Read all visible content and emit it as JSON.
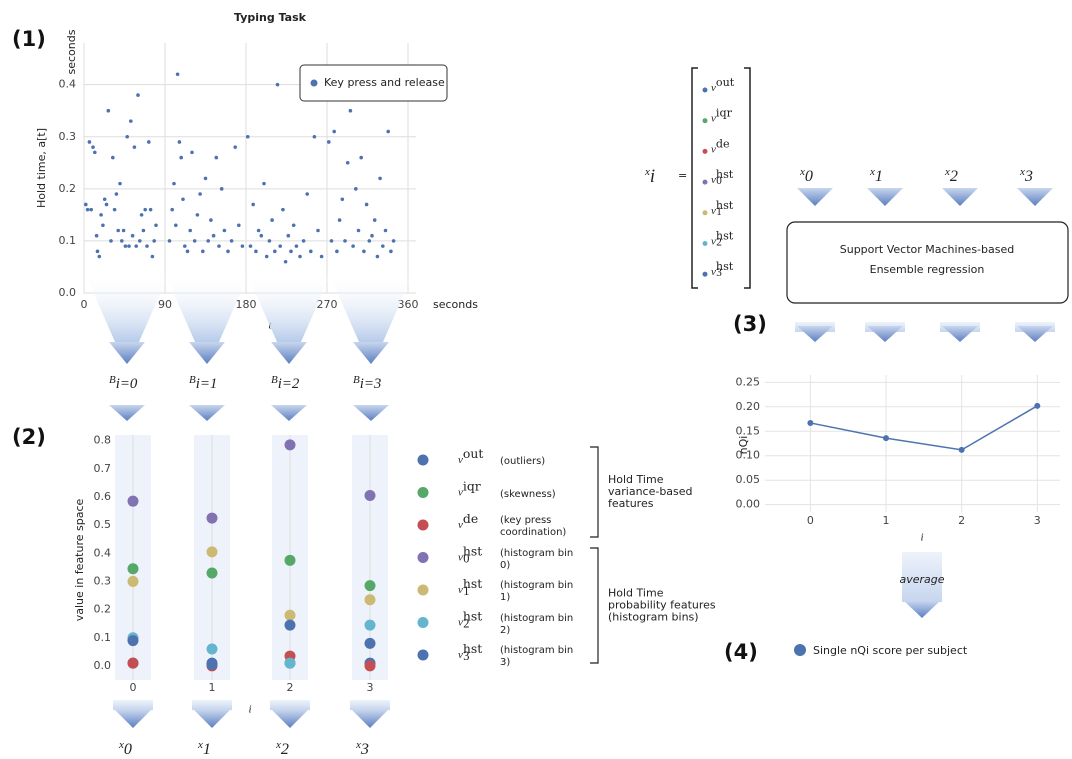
{
  "panels": [
    "(1)",
    "(2)",
    "(3)",
    "(4)"
  ],
  "blocks": [
    {
      "symbol": "B",
      "sub": "i=0"
    },
    {
      "symbol": "B",
      "sub": "i=1"
    },
    {
      "symbol": "B",
      "sub": "i=2"
    },
    {
      "symbol": "B",
      "sub": "i=3"
    }
  ],
  "features": [
    {
      "symbol": "x",
      "sub": "0"
    },
    {
      "symbol": "x",
      "sub": "1"
    },
    {
      "symbol": "x",
      "sub": "2"
    },
    {
      "symbol": "x",
      "sub": "3"
    }
  ],
  "features_top": [
    {
      "symbol": "x",
      "sub": "0"
    },
    {
      "symbol": "x",
      "sub": "1"
    },
    {
      "symbol": "x",
      "sub": "2"
    },
    {
      "symbol": "x",
      "sub": "3"
    }
  ],
  "vector": {
    "symbol": "x",
    "sub": "i",
    "eq": "=",
    "items": [
      {
        "sup": "out"
      },
      {
        "sup": "iqr"
      },
      {
        "sup": "de"
      },
      {
        "sup": "hst",
        "sub": "0"
      },
      {
        "sup": "hst",
        "sub": "1"
      },
      {
        "sup": "hst",
        "sub": "2"
      },
      {
        "sup": "hst",
        "sub": "3"
      }
    ],
    "symbol_item": "v"
  },
  "model_box": [
    "Support Vector Machines-based",
    "Ensemble regression"
  ],
  "average": "average",
  "result": "Single nQi score per subject",
  "brackets": [
    [
      "Hold Time",
      "variance-based",
      " features"
    ],
    [
      "Hold Time",
      "probability features",
      "(histogram bins)"
    ]
  ],
  "chart_data": [
    {
      "type": "scatter",
      "title": "Typing Task",
      "y_label": "Hold time, a[t]",
      "y_unit": "seconds",
      "x_label": "t",
      "x_unit": "seconds",
      "xlim": [
        0,
        360
      ],
      "xticks": [
        0,
        90,
        180,
        270,
        360
      ],
      "ylim": [
        0,
        0.48
      ],
      "yticks": [
        {
          "value": 0,
          "label": "0.0"
        },
        0.1,
        0.2,
        0.3,
        0.4
      ],
      "grid": true,
      "legend": "upper right",
      "series": [
        {
          "name": "Key press and release",
          "color": "#4c72b0",
          "x": [
            2,
            4,
            6,
            8,
            10,
            12,
            14,
            15,
            17,
            19,
            21,
            23,
            25,
            27,
            30,
            32,
            34,
            36,
            38,
            40,
            42,
            44,
            46,
            48,
            50,
            52,
            54,
            56,
            58,
            60,
            62,
            64,
            66,
            68,
            70,
            72,
            74,
            76,
            78,
            80,
            95,
            98,
            100,
            102,
            104,
            106,
            108,
            110,
            112,
            115,
            118,
            120,
            123,
            126,
            129,
            132,
            135,
            138,
            141,
            144,
            147,
            150,
            153,
            156,
            160,
            164,
            168,
            172,
            176,
            182,
            185,
            188,
            191,
            194,
            197,
            200,
            203,
            206,
            209,
            212,
            215,
            218,
            221,
            224,
            227,
            230,
            233,
            236,
            240,
            244,
            248,
            252,
            256,
            260,
            264,
            272,
            275,
            278,
            281,
            284,
            287,
            290,
            293,
            296,
            299,
            302,
            305,
            308,
            311,
            314,
            317,
            320,
            323,
            326,
            329,
            332,
            335,
            338,
            341,
            344
          ],
          "values": [
            0.17,
            0.16,
            0.29,
            0.16,
            0.28,
            0.27,
            0.11,
            0.08,
            0.07,
            0.15,
            0.13,
            0.18,
            0.17,
            0.35,
            0.1,
            0.26,
            0.16,
            0.19,
            0.12,
            0.21,
            0.1,
            0.12,
            0.09,
            0.3,
            0.09,
            0.33,
            0.11,
            0.28,
            0.09,
            0.38,
            0.1,
            0.15,
            0.12,
            0.16,
            0.09,
            0.29,
            0.16,
            0.07,
            0.1,
            0.13,
            0.1,
            0.16,
            0.21,
            0.13,
            0.42,
            0.29,
            0.26,
            0.18,
            0.09,
            0.08,
            0.12,
            0.27,
            0.1,
            0.15,
            0.19,
            0.08,
            0.22,
            0.1,
            0.14,
            0.11,
            0.26,
            0.09,
            0.2,
            0.12,
            0.08,
            0.1,
            0.28,
            0.13,
            0.09,
            0.3,
            0.09,
            0.17,
            0.08,
            0.12,
            0.11,
            0.21,
            0.07,
            0.1,
            0.14,
            0.08,
            0.4,
            0.09,
            0.16,
            0.06,
            0.11,
            0.08,
            0.13,
            0.09,
            0.07,
            0.1,
            0.19,
            0.08,
            0.3,
            0.12,
            0.07,
            0.29,
            0.1,
            0.31,
            0.08,
            0.14,
            0.18,
            0.1,
            0.25,
            0.35,
            0.09,
            0.2,
            0.12,
            0.26,
            0.08,
            0.17,
            0.1,
            0.11,
            0.14,
            0.07,
            0.22,
            0.09,
            0.12,
            0.31,
            0.08,
            0.1
          ]
        }
      ]
    },
    {
      "type": "feature_scatter",
      "y_label": "value in feature space",
      "x_label": "i",
      "categories": [
        "0",
        "1",
        "2",
        "3"
      ],
      "ylim": [
        -0.05,
        0.82
      ],
      "yticks": [
        {
          "value": 0,
          "label": "0.0"
        },
        0.1,
        0.2,
        0.3,
        0.4,
        0.5,
        0.6,
        0.7,
        0.8
      ],
      "grid": "x",
      "symbol": "v",
      "series": [
        {
          "sup": "out",
          "name": "(outliers)",
          "color": "#4c72b0",
          "values": [
            0.01,
            0.01,
            0.01,
            0.01
          ]
        },
        {
          "sup": "iqr",
          "name": "(skewness)",
          "color": "#55a868",
          "values": [
            0.345,
            0.33,
            0.375,
            0.285
          ]
        },
        {
          "sup": "de",
          "name": "(key press coordination)",
          "color": "#c44e52",
          "values": [
            0.01,
            0,
            0.035,
            0
          ]
        },
        {
          "sup": "hst",
          "sub": "0",
          "name": "(histogram bin 0)",
          "color": "#8172b2",
          "values": [
            0.585,
            0.525,
            0.785,
            0.605
          ]
        },
        {
          "sup": "hst",
          "sub": "1",
          "name": "(histogram bin 1)",
          "color": "#ccb974",
          "values": [
            0.3,
            0.405,
            0.18,
            0.235
          ]
        },
        {
          "sup": "hst",
          "sub": "2",
          "name": "(histogram bin 2)",
          "color": "#64b5cd",
          "values": [
            0.1,
            0.06,
            0.01,
            0.145
          ]
        },
        {
          "sup": "hst",
          "sub": "3",
          "name": "(histogram bin 3)",
          "color": "#4c72b0",
          "values": [
            0.09,
            0.005,
            0.145,
            0.08
          ]
        }
      ]
    },
    {
      "type": "line",
      "y_label": "nQi",
      "x_label": "i",
      "x": [
        0,
        1,
        2,
        3
      ],
      "xlim": [
        -0.6,
        3.3
      ],
      "xticks": [
        0,
        1,
        2,
        3
      ],
      "ylim": [
        -0.015,
        0.265
      ],
      "yticks": [
        {
          "value": 0,
          "label": "0.00"
        },
        {
          "value": 0.05,
          "label": "0.05"
        },
        {
          "value": 0.1,
          "label": "0.10"
        },
        {
          "value": 0.15,
          "label": "0.15"
        },
        {
          "value": 0.2,
          "label": "0.20"
        },
        {
          "value": 0.25,
          "label": "0.25"
        }
      ],
      "grid": true,
      "color": "#4c72b0",
      "values": [
        0.167,
        0.136,
        0.112,
        0.202
      ]
    }
  ]
}
